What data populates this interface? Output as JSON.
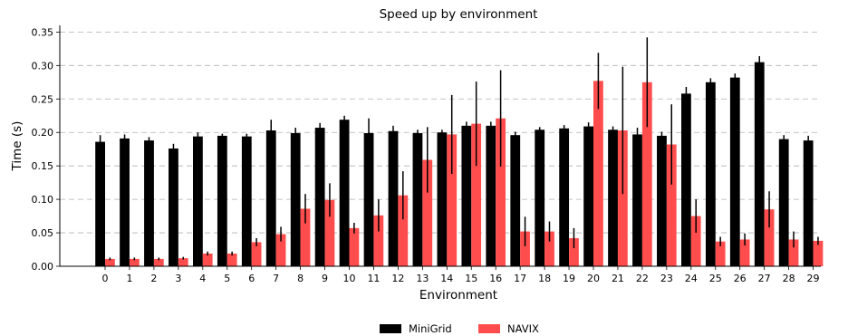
{
  "chart_data": {
    "type": "bar",
    "title": "Speed up by environment",
    "xlabel": "Environment",
    "ylabel": "Time (s)",
    "ylim": [
      0,
      0.36
    ],
    "yticks": [
      "0.00",
      "0.05",
      "0.10",
      "0.15",
      "0.20",
      "0.25",
      "0.30",
      "0.35"
    ],
    "grid": "horizontal dashed",
    "legend_position": "bottom-center",
    "categories": [
      "0",
      "1",
      "2",
      "3",
      "4",
      "5",
      "6",
      "7",
      "8",
      "9",
      "10",
      "11",
      "12",
      "13",
      "14",
      "15",
      "16",
      "17",
      "18",
      "19",
      "20",
      "21",
      "22",
      "23",
      "24",
      "25",
      "26",
      "27",
      "28",
      "29"
    ],
    "series": [
      {
        "name": "MiniGrid",
        "color": "#000000",
        "values": [
          0.186,
          0.191,
          0.188,
          0.176,
          0.194,
          0.195,
          0.194,
          0.203,
          0.199,
          0.207,
          0.219,
          0.199,
          0.202,
          0.199,
          0.2,
          0.21,
          0.21,
          0.196,
          0.204,
          0.206,
          0.209,
          0.204,
          0.197,
          0.195,
          0.258,
          0.275,
          0.282,
          0.305,
          0.19,
          0.188
        ],
        "errors": [
          0.01,
          0.006,
          0.005,
          0.007,
          0.006,
          0.003,
          0.004,
          0.016,
          0.008,
          0.007,
          0.006,
          0.022,
          0.008,
          0.005,
          0.004,
          0.006,
          0.006,
          0.005,
          0.004,
          0.005,
          0.006,
          0.005,
          0.01,
          0.006,
          0.01,
          0.006,
          0.006,
          0.009,
          0.006,
          0.007
        ]
      },
      {
        "name": "NAVIX",
        "color": "#ff4d4d",
        "values": [
          0.011,
          0.011,
          0.011,
          0.012,
          0.019,
          0.019,
          0.036,
          0.048,
          0.086,
          0.099,
          0.057,
          0.076,
          0.106,
          0.159,
          0.197,
          0.213,
          0.221,
          0.052,
          0.052,
          0.042,
          0.277,
          0.203,
          0.275,
          0.182,
          0.075,
          0.037,
          0.04,
          0.085,
          0.04,
          0.038
        ],
        "errors": [
          0.002,
          0.002,
          0.002,
          0.002,
          0.003,
          0.003,
          0.006,
          0.011,
          0.022,
          0.025,
          0.008,
          0.024,
          0.036,
          0.049,
          0.059,
          0.063,
          0.072,
          0.022,
          0.015,
          0.015,
          0.042,
          0.095,
          0.067,
          0.06,
          0.025,
          0.007,
          0.009,
          0.027,
          0.012,
          0.006
        ]
      }
    ]
  }
}
